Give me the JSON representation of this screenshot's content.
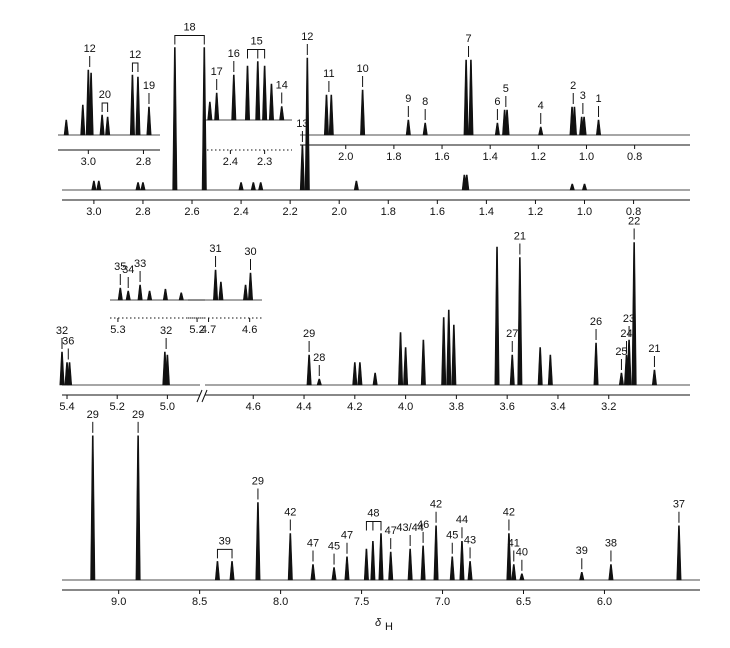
{
  "chart_data": [
    {
      "type": "nmr",
      "xlim": [
        3.13,
        0.57
      ],
      "xticks": [
        {
          "value": 3.0,
          "label": "3.0"
        },
        2.8,
        2.6,
        2.4,
        2.2,
        {
          "value": 2.0,
          "label": "2.0"
        },
        1.8,
        1.6,
        1.4,
        1.2,
        {
          "value": 1.0,
          "label": "1.0"
        },
        0.8
      ],
      "groups": [
        {
          "label": "18",
          "x": [
            2.67,
            2.55
          ],
          "h": [
            95,
            95
          ]
        },
        {
          "label": "12",
          "x": [
            2.13
          ],
          "h": [
            88
          ]
        },
        {
          "label": "13",
          "x": [
            2.15
          ],
          "h": [
            30
          ]
        },
        {
          "x": [
            3.0,
            2.98,
            2.82,
            2.8,
            2.4,
            2.35,
            2.32,
            1.93,
            1.49,
            1.48,
            1.05,
            1.0
          ],
          "h": [
            6,
            6,
            5,
            5,
            5,
            5,
            5,
            6,
            10,
            10,
            4,
            4
          ]
        }
      ]
    },
    {
      "type": "nmr",
      "xlim": [
        3.11,
        2.74
      ],
      "xticks": [
        {
          "value": 3.0,
          "label": "3.0"
        },
        2.8
      ],
      "groups": [
        {
          "label": "12",
          "x": [
            3.0,
            2.99
          ],
          "h": [
            65,
            62
          ]
        },
        {
          "label": "20",
          "x": [
            2.95,
            2.93
          ],
          "h": [
            20,
            18
          ]
        },
        {
          "label": "12",
          "x": [
            2.84,
            2.82
          ],
          "h": [
            60,
            58
          ]
        },
        {
          "label": "19",
          "x": [
            2.78
          ],
          "h": [
            28
          ]
        },
        {
          "x": [
            3.08,
            3.02
          ],
          "h": [
            15,
            30
          ]
        }
      ]
    },
    {
      "type": "nmr",
      "xlim": [
        2.48,
        2.22
      ],
      "xticks": [
        2.4,
        2.3
      ],
      "dotted_axis": true,
      "groups": [
        {
          "label": "17",
          "x": [
            2.44
          ],
          "h": [
            30
          ]
        },
        {
          "label": "16",
          "x": [
            2.39
          ],
          "h": [
            50
          ]
        },
        {
          "label": "15",
          "x": [
            2.35,
            2.32,
            2.3
          ],
          "h": [
            60,
            65,
            60
          ]
        },
        {
          "label": "14",
          "x": [
            2.25
          ],
          "h": [
            15
          ]
        },
        {
          "x": [
            2.46,
            2.28
          ],
          "h": [
            20,
            40
          ]
        }
      ]
    },
    {
      "type": "nmr",
      "xlim": [
        2.19,
        0.57
      ],
      "xticks": [
        {
          "value": 2.0,
          "label": "2.0"
        },
        1.8,
        1.6,
        1.4,
        1.2,
        {
          "value": 1.0,
          "label": "1.0"
        },
        0.8
      ],
      "groups": [
        {
          "label": "11",
          "x": [
            2.08,
            2.06
          ],
          "h": [
            40,
            40
          ]
        },
        {
          "label": "10",
          "x": [
            1.93
          ],
          "h": [
            45
          ]
        },
        {
          "label": "9",
          "x": [
            1.74
          ],
          "h": [
            15
          ]
        },
        {
          "label": "8",
          "x": [
            1.67
          ],
          "h": [
            12
          ]
        },
        {
          "label": "7",
          "x": [
            1.5,
            1.48
          ],
          "h": [
            75,
            75
          ]
        },
        {
          "label": "6",
          "x": [
            1.37
          ],
          "h": [
            12
          ]
        },
        {
          "label": "5",
          "x": [
            1.34,
            1.33
          ],
          "h": [
            25,
            25
          ]
        },
        {
          "label": "4",
          "x": [
            1.19
          ],
          "h": [
            8
          ]
        },
        {
          "label": "2",
          "x": [
            1.06,
            1.05
          ],
          "h": [
            28,
            28
          ]
        },
        {
          "label": "3",
          "x": [
            1.02,
            1.01
          ],
          "h": [
            18,
            18
          ]
        },
        {
          "label": "1",
          "x": [
            0.95
          ],
          "h": [
            15
          ]
        }
      ]
    },
    {
      "type": "nmr",
      "xlim": [
        5.42,
        4.87
      ],
      "xticks": [
        5.4,
        5.2,
        {
          "value": 5.0,
          "label": "5.0"
        }
      ],
      "groups": [
        {
          "label": "32",
          "x": [
            5.42
          ],
          "h": [
            22
          ]
        },
        {
          "label": "36",
          "x": [
            5.4,
            5.39
          ],
          "h": [
            15,
            15
          ]
        },
        {
          "label": "32",
          "x": [
            5.01,
            5.0
          ],
          "h": [
            22,
            20
          ]
        }
      ]
    },
    {
      "type": "nmr",
      "xlim": [
        4.79,
        2.88
      ],
      "xticks": [
        4.6,
        4.4,
        4.2,
        {
          "value": 4.0,
          "label": "4.0"
        },
        3.8,
        3.6,
        3.4,
        3.2
      ],
      "groups": [
        {
          "label": "29",
          "x": [
            4.38
          ],
          "h": [
            20
          ]
        },
        {
          "label": "28",
          "x": [
            4.34
          ],
          "h": [
            4
          ]
        },
        {
          "label": "27",
          "x": [
            3.58
          ],
          "h": [
            20
          ]
        },
        {
          "label": "21",
          "x": [
            3.55
          ],
          "h": [
            85
          ]
        },
        {
          "label": "26",
          "x": [
            3.25
          ],
          "h": [
            28
          ]
        },
        {
          "label": "25",
          "x": [
            3.15
          ],
          "h": [
            8
          ]
        },
        {
          "label": "24",
          "x": [
            3.13
          ],
          "h": [
            20
          ]
        },
        {
          "label": "23",
          "x": [
            3.12
          ],
          "h": [
            30
          ]
        },
        {
          "label": "22",
          "x": [
            3.1
          ],
          "h": [
            95
          ]
        },
        {
          "label": "21",
          "x": [
            3.02
          ],
          "h": [
            10
          ]
        },
        {
          "x": [
            4.2,
            4.18,
            4.12,
            4.02,
            4.0,
            3.93,
            3.85,
            3.83,
            3.81,
            3.64,
            3.47,
            3.43
          ],
          "h": [
            15,
            15,
            8,
            35,
            25,
            30,
            45,
            50,
            40,
            92,
            25,
            20
          ]
        }
      ]
    },
    {
      "type": "nmr",
      "xlim": [
        5.31,
        5.19
      ],
      "xticks": [
        5.3,
        5.2
      ],
      "dotted_axis": true,
      "groups": [
        {
          "label": "35",
          "x": [
            5.297
          ],
          "h": [
            20
          ]
        },
        {
          "label": "34",
          "x": [
            5.287
          ],
          "h": [
            15
          ]
        },
        {
          "label": "33",
          "x": [
            5.272
          ],
          "h": [
            25
          ]
        },
        {
          "x": [
            5.26,
            5.24,
            5.22
          ],
          "h": [
            15,
            18,
            12
          ]
        }
      ]
    },
    {
      "type": "nmr",
      "xlim": [
        4.75,
        4.57
      ],
      "xticks": [
        4.7,
        4.6
      ],
      "dotted_axis": true,
      "groups": [
        {
          "label": "31",
          "x": [
            4.683
          ],
          "h": [
            50
          ]
        },
        {
          "label": "30",
          "x": [
            4.598
          ],
          "h": [
            45
          ]
        },
        {
          "x": [
            4.67,
            4.61
          ],
          "h": [
            30,
            25
          ]
        }
      ]
    },
    {
      "type": "nmr",
      "xlim": [
        9.35,
        5.41
      ],
      "xticks": [
        {
          "value": 9.0,
          "label": "9.0"
        },
        8.5,
        {
          "value": 8.0,
          "label": "8.0"
        },
        7.5,
        {
          "value": 7.0,
          "label": "7.0"
        },
        6.5,
        {
          "value": 6.0,
          "label": "6.0"
        }
      ],
      "x_label": "δ",
      "x_label_sub": "H",
      "groups": [
        {
          "label": "29",
          "x": [
            9.16
          ],
          "h": [
            93
          ]
        },
        {
          "label": "29",
          "x": [
            8.88
          ],
          "h": [
            93
          ]
        },
        {
          "label": "39",
          "x": [
            8.39,
            8.3
          ],
          "h": [
            12,
            12
          ]
        },
        {
          "label": "29",
          "x": [
            8.14
          ],
          "h": [
            50
          ]
        },
        {
          "label": "42",
          "x": [
            7.94
          ],
          "h": [
            30
          ]
        },
        {
          "label": "47",
          "x": [
            7.8
          ],
          "h": [
            10
          ]
        },
        {
          "label": "45",
          "x": [
            7.67
          ],
          "h": [
            8
          ]
        },
        {
          "label": "47",
          "x": [
            7.59
          ],
          "h": [
            15
          ]
        },
        {
          "label": "48",
          "x": [
            7.47,
            7.43,
            7.38
          ],
          "h": [
            20,
            25,
            30
          ]
        },
        {
          "label": "47",
          "x": [
            7.32
          ],
          "h": [
            18
          ]
        },
        {
          "label": "43/44",
          "x": [
            7.2
          ],
          "h": [
            20
          ]
        },
        {
          "label": "46",
          "x": [
            7.12
          ],
          "h": [
            22
          ]
        },
        {
          "label": "42",
          "x": [
            7.04
          ],
          "h": [
            35
          ]
        },
        {
          "label": "45",
          "x": [
            6.94
          ],
          "h": [
            15
          ]
        },
        {
          "label": "44",
          "x": [
            6.88
          ],
          "h": [
            25
          ]
        },
        {
          "label": "43",
          "x": [
            6.83
          ],
          "h": [
            12
          ]
        },
        {
          "label": "42",
          "x": [
            6.59
          ],
          "h": [
            30
          ]
        },
        {
          "label": "41",
          "x": [
            6.56
          ],
          "h": [
            10
          ]
        },
        {
          "label": "40",
          "x": [
            6.51
          ],
          "h": [
            4
          ]
        },
        {
          "label": "39",
          "x": [
            6.14
          ],
          "h": [
            5
          ]
        },
        {
          "label": "38",
          "x": [
            5.96
          ],
          "h": [
            10
          ]
        },
        {
          "label": "37",
          "x": [
            5.54
          ],
          "h": [
            35
          ]
        }
      ]
    }
  ]
}
